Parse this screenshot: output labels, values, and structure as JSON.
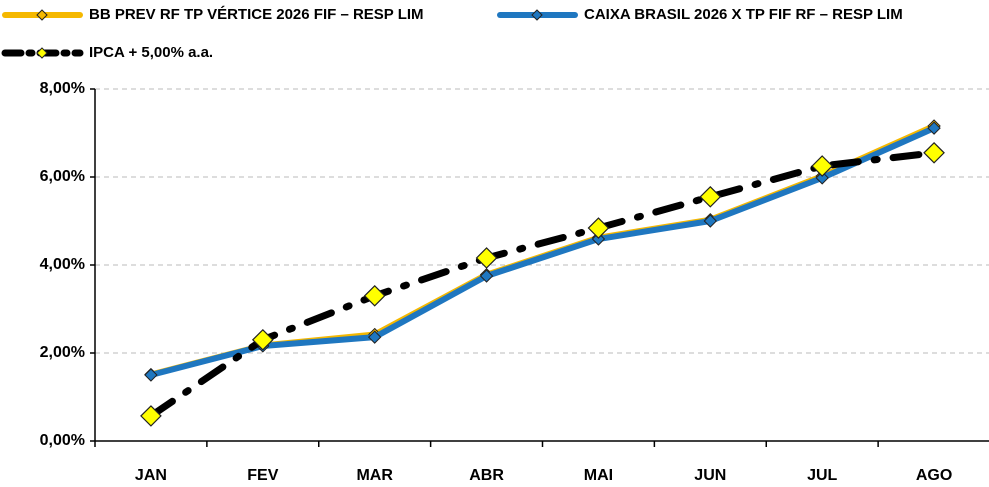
{
  "chart_data": {
    "type": "line",
    "categories": [
      "JAN",
      "FEV",
      "MAR",
      "ABR",
      "MAI",
      "JUN",
      "JUL",
      "AGO"
    ],
    "series": [
      {
        "name": "BB PREV RF TP VÉRTICE 2026 FIF – RESP LIM",
        "color": "#f5b800",
        "values": [
          1.51,
          2.17,
          2.42,
          3.78,
          4.62,
          5.03,
          6.02,
          7.16
        ]
      },
      {
        "name": "CAIXA BRASIL 2026 X TP FIF RF – RESP LIM",
        "color": "#1f77c0",
        "values": [
          1.5,
          2.16,
          2.36,
          3.75,
          4.59,
          5.0,
          5.98,
          7.11
        ]
      },
      {
        "name": "IPCA + 5,00% a.a.",
        "color": "#000000",
        "values": [
          0.57,
          2.3,
          3.3,
          4.16,
          4.84,
          5.55,
          6.25,
          6.55
        ]
      }
    ],
    "ylim": [
      0,
      8
    ],
    "yticks": [
      {
        "value": 0,
        "label": "0,00%"
      },
      {
        "value": 2,
        "label": "2,00%"
      },
      {
        "value": 4,
        "label": "4,00%"
      },
      {
        "value": 6,
        "label": "6,00%"
      },
      {
        "value": 8,
        "label": "8,00%"
      }
    ],
    "grid": true
  }
}
